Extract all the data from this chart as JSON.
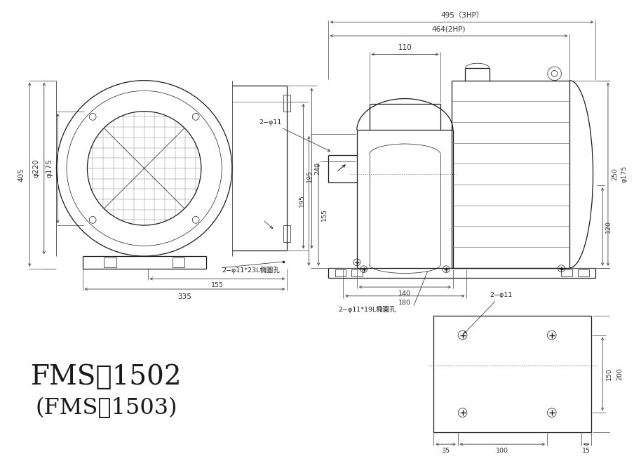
{
  "bg_color": "#ffffff",
  "line_color": "#1a1a1a",
  "annotations": {
    "dim_405": "405",
    "dim_phi220": "φ220",
    "dim_phi175_l": "φ175",
    "dim_335": "335",
    "dim_155_l": "155",
    "dim_195_l": "195",
    "dim_240": "240",
    "dim_495": "495（3HP）",
    "dim_464": "464(2HP)",
    "dim_110": "110",
    "dim_phi175_r": "φ175",
    "dim_195_r": "195",
    "dim_155_r": "155",
    "dim_140": "140",
    "dim_180": "180",
    "dim_250": "250",
    "dim_120": "120",
    "dim_150": "150",
    "dim_200": "200",
    "dim_35": "35",
    "dim_100": "100",
    "dim_15": "15",
    "label_2phi11_l": "2−φ11",
    "label_slot_l": "2−φ11*23L橢圓孔",
    "label_slot_r": "2−φ11*19L橢圓孔",
    "label_2phi11_br": "2−φ11",
    "model1": "FMS－1502",
    "model2": "(FMS－1503)"
  }
}
